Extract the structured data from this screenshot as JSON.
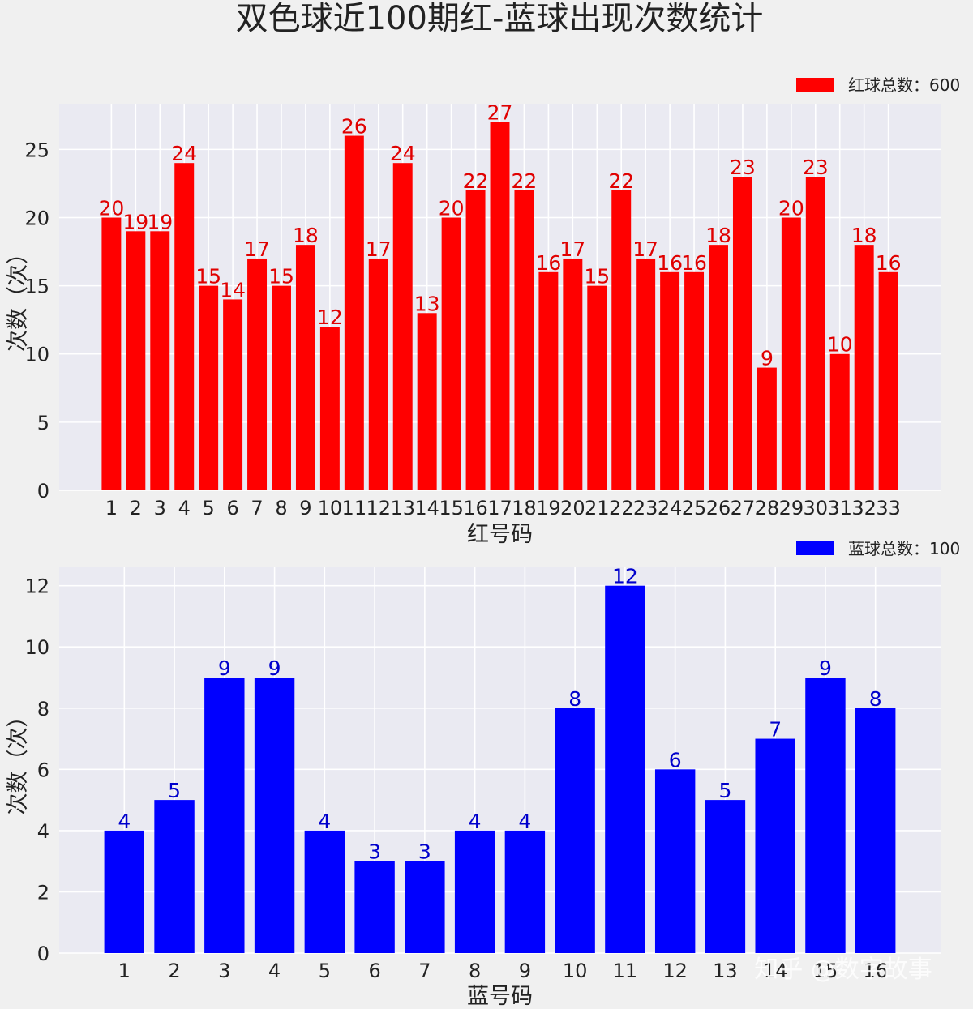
{
  "title": "双色球近100期红-蓝球出现次数统计",
  "watermark": "知乎 @数字故事",
  "chart_data": [
    {
      "type": "bar",
      "color": "#ff0000",
      "label_color": "#e00000",
      "legend": "红球总数：600",
      "legend_position": "top-right",
      "xlabel": "红号码",
      "ylabel": "次数（次）",
      "ylim": [
        0,
        28.35
      ],
      "yticks": [
        0,
        5,
        10,
        15,
        20,
        25
      ],
      "grid": true,
      "categories": [
        "1",
        "2",
        "3",
        "4",
        "5",
        "6",
        "7",
        "8",
        "9",
        "10",
        "11",
        "12",
        "13",
        "14",
        "15",
        "16",
        "17",
        "18",
        "19",
        "20",
        "21",
        "22",
        "23",
        "24",
        "25",
        "26",
        "27",
        "28",
        "29",
        "30",
        "31",
        "32",
        "33"
      ],
      "values": [
        20,
        19,
        19,
        24,
        15,
        14,
        17,
        15,
        18,
        12,
        26,
        17,
        24,
        13,
        20,
        22,
        27,
        22,
        16,
        17,
        15,
        22,
        17,
        16,
        16,
        18,
        23,
        9,
        20,
        23,
        10,
        18,
        16
      ]
    },
    {
      "type": "bar",
      "color": "#0000ff",
      "label_color": "#0000cc",
      "legend": "蓝球总数：100",
      "legend_position": "top-right",
      "xlabel": "蓝号码",
      "ylabel": "次数（次）",
      "ylim": [
        0,
        12.6
      ],
      "yticks": [
        0,
        2,
        4,
        6,
        8,
        10,
        12
      ],
      "grid": true,
      "categories": [
        "1",
        "2",
        "3",
        "4",
        "5",
        "6",
        "7",
        "8",
        "9",
        "10",
        "11",
        "12",
        "13",
        "14",
        "15",
        "16"
      ],
      "values": [
        4,
        5,
        9,
        9,
        4,
        3,
        3,
        4,
        4,
        8,
        12,
        6,
        5,
        7,
        9,
        8
      ]
    }
  ]
}
